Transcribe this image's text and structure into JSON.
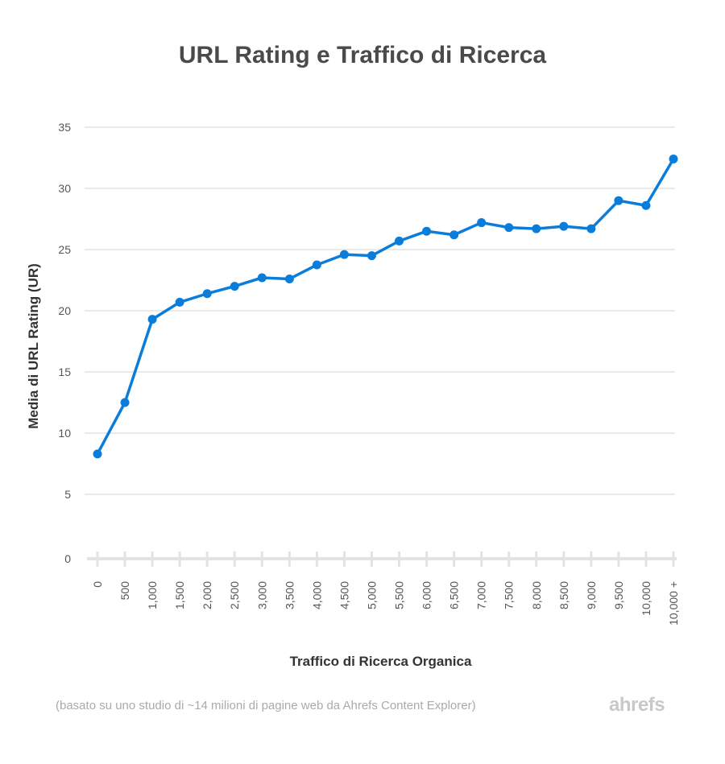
{
  "chart_data": {
    "type": "line",
    "title": "URL Rating e Traffico di Ricerca",
    "xlabel": "Traffico di Ricerca Organica",
    "ylabel": "Media di URL Rating (UR)",
    "categories": [
      "0",
      "500",
      "1,000",
      "1,500",
      "2,000",
      "2,500",
      "3,000",
      "3,500",
      "4,000",
      "4,500",
      "5,000",
      "5,500",
      "6,000",
      "6,500",
      "7,000",
      "7,500",
      "8,000",
      "8,500",
      "9,000",
      "9,500",
      "10,000",
      "10,000 +"
    ],
    "values": [
      8.3,
      12.5,
      19.3,
      20.7,
      21.4,
      22.0,
      22.7,
      22.6,
      23.75,
      24.6,
      24.5,
      25.7,
      26.5,
      26.2,
      27.2,
      26.8,
      26.7,
      26.9,
      26.7,
      29.0,
      28.6,
      32.4
    ],
    "ylim": [
      0,
      35
    ],
    "yticks": [
      0,
      5,
      10,
      15,
      20,
      25,
      30,
      35
    ],
    "grid": true,
    "color": "#0a7ddb"
  },
  "footnote": "(basato su uno studio di ~14 milioni di pagine web da Ahrefs Content Explorer)",
  "logo": "ahrefs"
}
